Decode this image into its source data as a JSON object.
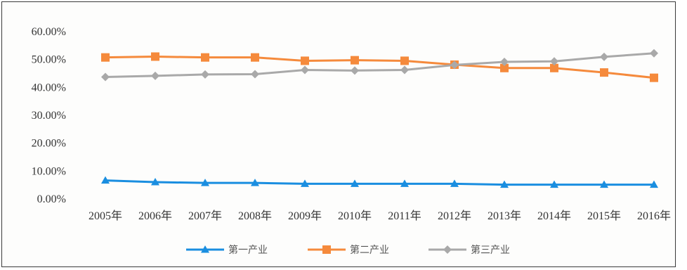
{
  "chart_data": {
    "type": "line",
    "title": "",
    "xlabel": "",
    "ylabel": "",
    "categories": [
      "2005年",
      "2006年",
      "2007年",
      "2008年",
      "2009年",
      "2010年",
      "2011年",
      "2012年",
      "2013年",
      "2014年",
      "2015年",
      "2016年"
    ],
    "ylim": [
      0,
      0.6
    ],
    "yticks": [
      "0.00%",
      "10.00%",
      "20.00%",
      "30.00%",
      "40.00%",
      "50.00%",
      "60.00%"
    ],
    "grid": false,
    "legend_position": "bottom",
    "series": [
      {
        "name": "第一产业",
        "color": "#1a8ee0",
        "marker": "triangle",
        "values": [
          0.064,
          0.058,
          0.055,
          0.055,
          0.052,
          0.052,
          0.052,
          0.052,
          0.049,
          0.049,
          0.049,
          0.049
        ]
      },
      {
        "name": "第二产业",
        "color": "#f58a3c",
        "marker": "square",
        "values": [
          0.505,
          0.508,
          0.505,
          0.505,
          0.493,
          0.495,
          0.493,
          0.479,
          0.467,
          0.467,
          0.451,
          0.432
        ]
      },
      {
        "name": "第三产业",
        "color": "#a9a9a9",
        "marker": "diamond",
        "values": [
          0.435,
          0.439,
          0.444,
          0.445,
          0.46,
          0.458,
          0.46,
          0.478,
          0.489,
          0.491,
          0.507,
          0.52
        ]
      }
    ]
  }
}
